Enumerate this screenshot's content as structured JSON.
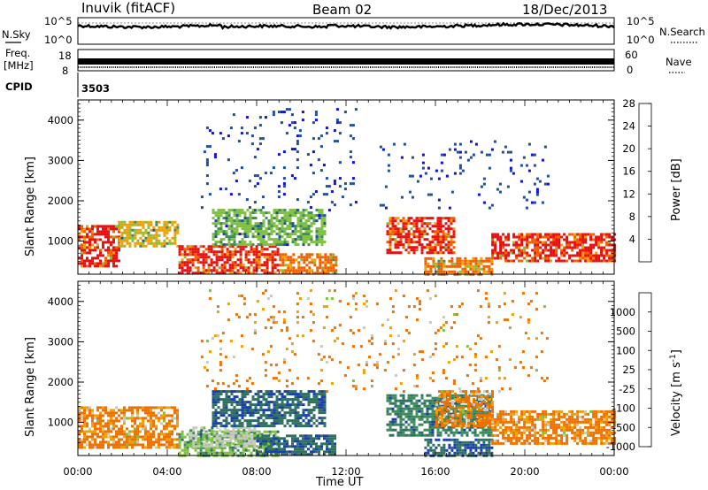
{
  "header": {
    "station": "Inuvik (fitACF)",
    "beam": "Beam 02",
    "date": "18/Dec/2013"
  },
  "noise_panel": {
    "left_label": "N.Sky",
    "right_label": "N.Search",
    "left_ticks": [
      "10^5",
      "10^0"
    ],
    "right_ticks": [
      "10^5",
      "10^0"
    ]
  },
  "freq_panel": {
    "left_label_top": "Freq.",
    "left_label_bottom": "[MHz]",
    "right_label": "Nave",
    "left_ticks": [
      "18",
      "8"
    ],
    "right_ticks": [
      "60",
      "0"
    ]
  },
  "cpid": {
    "label": "CPID",
    "value": "3503"
  },
  "chart_data": [
    {
      "type": "heatmap",
      "panel": "power",
      "ylabel": "Slant Range [km]",
      "ylim": [
        180,
        4500
      ],
      "yticks": [
        "1000",
        "2000",
        "3000",
        "4000"
      ],
      "colorbar_label": "Power [dB]",
      "colorbar_ticks": [
        "4",
        "8",
        "12",
        "16",
        "20",
        "24",
        "28"
      ],
      "colors": [
        "#1010e0",
        "#20509a",
        "#3c8c5c",
        "#80c040",
        "#f0a000",
        "#f06000",
        "#e81010"
      ],
      "regions": [
        {
          "t0": 0.0,
          "t1": 1.8,
          "r0": 400,
          "r1": 1400,
          "level": 6
        },
        {
          "t0": 1.8,
          "t1": 4.5,
          "r0": 900,
          "r1": 1500,
          "level": 4
        },
        {
          "t0": 4.5,
          "t1": 9.0,
          "r0": 200,
          "r1": 900,
          "level": 6
        },
        {
          "t0": 9.0,
          "t1": 11.5,
          "r0": 200,
          "r1": 700,
          "level": 5
        },
        {
          "t0": 6.0,
          "t1": 11.0,
          "r0": 900,
          "r1": 1800,
          "level": 3
        },
        {
          "t0": 13.8,
          "t1": 16.8,
          "r0": 700,
          "r1": 1600,
          "level": 6
        },
        {
          "t0": 15.5,
          "t1": 18.5,
          "r0": 200,
          "r1": 600,
          "level": 5
        },
        {
          "t0": 18.5,
          "t1": 24.0,
          "r0": 500,
          "r1": 1200,
          "level": 6
        },
        {
          "t0": 5.5,
          "t1": 12.5,
          "r0": 1800,
          "r1": 4300,
          "level": 1
        },
        {
          "t0": 13.5,
          "t1": 21.0,
          "r0": 1800,
          "r1": 3500,
          "level": 1
        }
      ]
    },
    {
      "type": "heatmap",
      "panel": "velocity",
      "ylabel": "Slant Range [km]",
      "xlabel": "Time UT",
      "xlim": [
        0,
        24
      ],
      "xticks": [
        "00:00",
        "04:00",
        "08:00",
        "12:00",
        "16:00",
        "20:00",
        "00:00"
      ],
      "ylim": [
        180,
        4500
      ],
      "yticks": [
        "1000",
        "2000",
        "3000",
        "4000"
      ],
      "colorbar_label": "Velocity [m s",
      "colorbar_label_sup": "-1",
      "colorbar_label_end": "]",
      "colorbar_ticks": [
        "1000",
        "500",
        "100",
        "25",
        "-25",
        "-100",
        "-500",
        "-1000"
      ],
      "colors": [
        "#1a3fb0",
        "#2f7060",
        "#3c8c5c",
        "#80c040",
        "#c8c8c0",
        "#f0a000",
        "#f07000",
        "#e81010"
      ],
      "regions": [
        {
          "t0": 0.0,
          "t1": 4.5,
          "r0": 400,
          "r1": 1400,
          "level": 6
        },
        {
          "t0": 4.5,
          "t1": 9.0,
          "r0": 200,
          "r1": 800,
          "level": 3
        },
        {
          "t0": 5.0,
          "t1": 8.0,
          "r0": 400,
          "r1": 900,
          "level": 4
        },
        {
          "t0": 6.0,
          "t1": 11.0,
          "r0": 900,
          "r1": 1800,
          "level": 1
        },
        {
          "t0": 8.0,
          "t1": 11.5,
          "r0": 200,
          "r1": 700,
          "level": 1
        },
        {
          "t0": 13.8,
          "t1": 18.5,
          "r0": 700,
          "r1": 1700,
          "level": 2
        },
        {
          "t0": 16.0,
          "t1": 18.5,
          "r0": 900,
          "r1": 1800,
          "level": 6
        },
        {
          "t0": 15.5,
          "t1": 18.5,
          "r0": 200,
          "r1": 600,
          "level": 1
        },
        {
          "t0": 18.5,
          "t1": 24.0,
          "r0": 500,
          "r1": 1300,
          "level": 6
        },
        {
          "t0": 5.5,
          "t1": 21.0,
          "r0": 1800,
          "r1": 4300,
          "level": 6
        }
      ]
    }
  ]
}
